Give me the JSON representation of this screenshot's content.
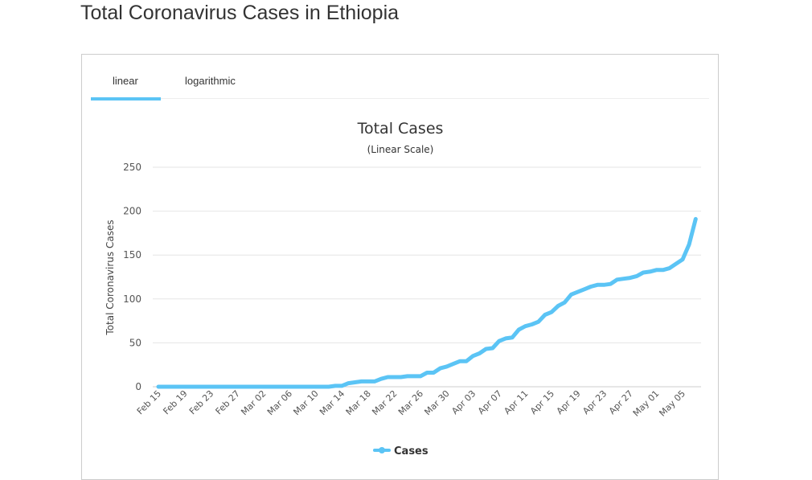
{
  "page_title": "Total Coronavirus Cases in Ethiopia",
  "tabs": [
    {
      "label": "linear",
      "active": true
    },
    {
      "label": "logarithmic",
      "active": false
    }
  ],
  "colors": {
    "series": "#5bc4f5",
    "grid": "#e6e6e6",
    "text": "#333333"
  },
  "chart_data": {
    "type": "line",
    "title": "Total Cases",
    "subtitle": "(Linear Scale)",
    "xlabel": "",
    "ylabel": "Total Coronavirus Cases",
    "ylim": [
      0,
      250
    ],
    "yticks": [
      0,
      50,
      100,
      150,
      200,
      250
    ],
    "grid": true,
    "legend": "bottom",
    "xtick_labels": [
      "Feb 15",
      "Feb 19",
      "Feb 23",
      "Feb 27",
      "Mar 02",
      "Mar 06",
      "Mar 10",
      "Mar 14",
      "Mar 18",
      "Mar 22",
      "Mar 26",
      "Mar 30",
      "Apr 03",
      "Apr 07",
      "Apr 11",
      "Apr 15",
      "Apr 19",
      "Apr 23",
      "Apr 27",
      "May 01",
      "May 05"
    ],
    "categories": [
      "Feb 15",
      "Feb 16",
      "Feb 17",
      "Feb 18",
      "Feb 19",
      "Feb 20",
      "Feb 21",
      "Feb 22",
      "Feb 23",
      "Feb 24",
      "Feb 25",
      "Feb 26",
      "Feb 27",
      "Feb 28",
      "Feb 29",
      "Mar 01",
      "Mar 02",
      "Mar 03",
      "Mar 04",
      "Mar 05",
      "Mar 06",
      "Mar 07",
      "Mar 08",
      "Mar 09",
      "Mar 10",
      "Mar 11",
      "Mar 12",
      "Mar 13",
      "Mar 14",
      "Mar 15",
      "Mar 16",
      "Mar 17",
      "Mar 18",
      "Mar 19",
      "Mar 20",
      "Mar 21",
      "Mar 22",
      "Mar 23",
      "Mar 24",
      "Mar 25",
      "Mar 26",
      "Mar 27",
      "Mar 28",
      "Mar 29",
      "Mar 30",
      "Mar 31",
      "Apr 01",
      "Apr 02",
      "Apr 03",
      "Apr 04",
      "Apr 05",
      "Apr 06",
      "Apr 07",
      "Apr 08",
      "Apr 09",
      "Apr 10",
      "Apr 11",
      "Apr 12",
      "Apr 13",
      "Apr 14",
      "Apr 15",
      "Apr 16",
      "Apr 17",
      "Apr 18",
      "Apr 19",
      "Apr 20",
      "Apr 21",
      "Apr 22",
      "Apr 23",
      "Apr 24",
      "Apr 25",
      "Apr 26",
      "Apr 27",
      "Apr 28",
      "Apr 29",
      "Apr 30",
      "May 01",
      "May 02",
      "May 03",
      "May 04",
      "May 05",
      "May 06",
      "May 07"
    ],
    "series": [
      {
        "name": "Cases",
        "values": [
          0,
          0,
          0,
          0,
          0,
          0,
          0,
          0,
          0,
          0,
          0,
          0,
          0,
          0,
          0,
          0,
          0,
          0,
          0,
          0,
          0,
          0,
          0,
          0,
          0,
          0,
          0,
          1,
          1,
          4,
          5,
          6,
          6,
          6,
          9,
          11,
          11,
          11,
          12,
          12,
          12,
          16,
          16,
          21,
          23,
          26,
          29,
          29,
          35,
          38,
          43,
          44,
          52,
          55,
          56,
          65,
          69,
          71,
          74,
          82,
          85,
          92,
          96,
          105,
          108,
          111,
          114,
          116,
          116,
          117,
          122,
          123,
          124,
          126,
          130,
          131,
          133,
          133,
          135,
          140,
          145,
          162,
          191
        ]
      }
    ]
  }
}
